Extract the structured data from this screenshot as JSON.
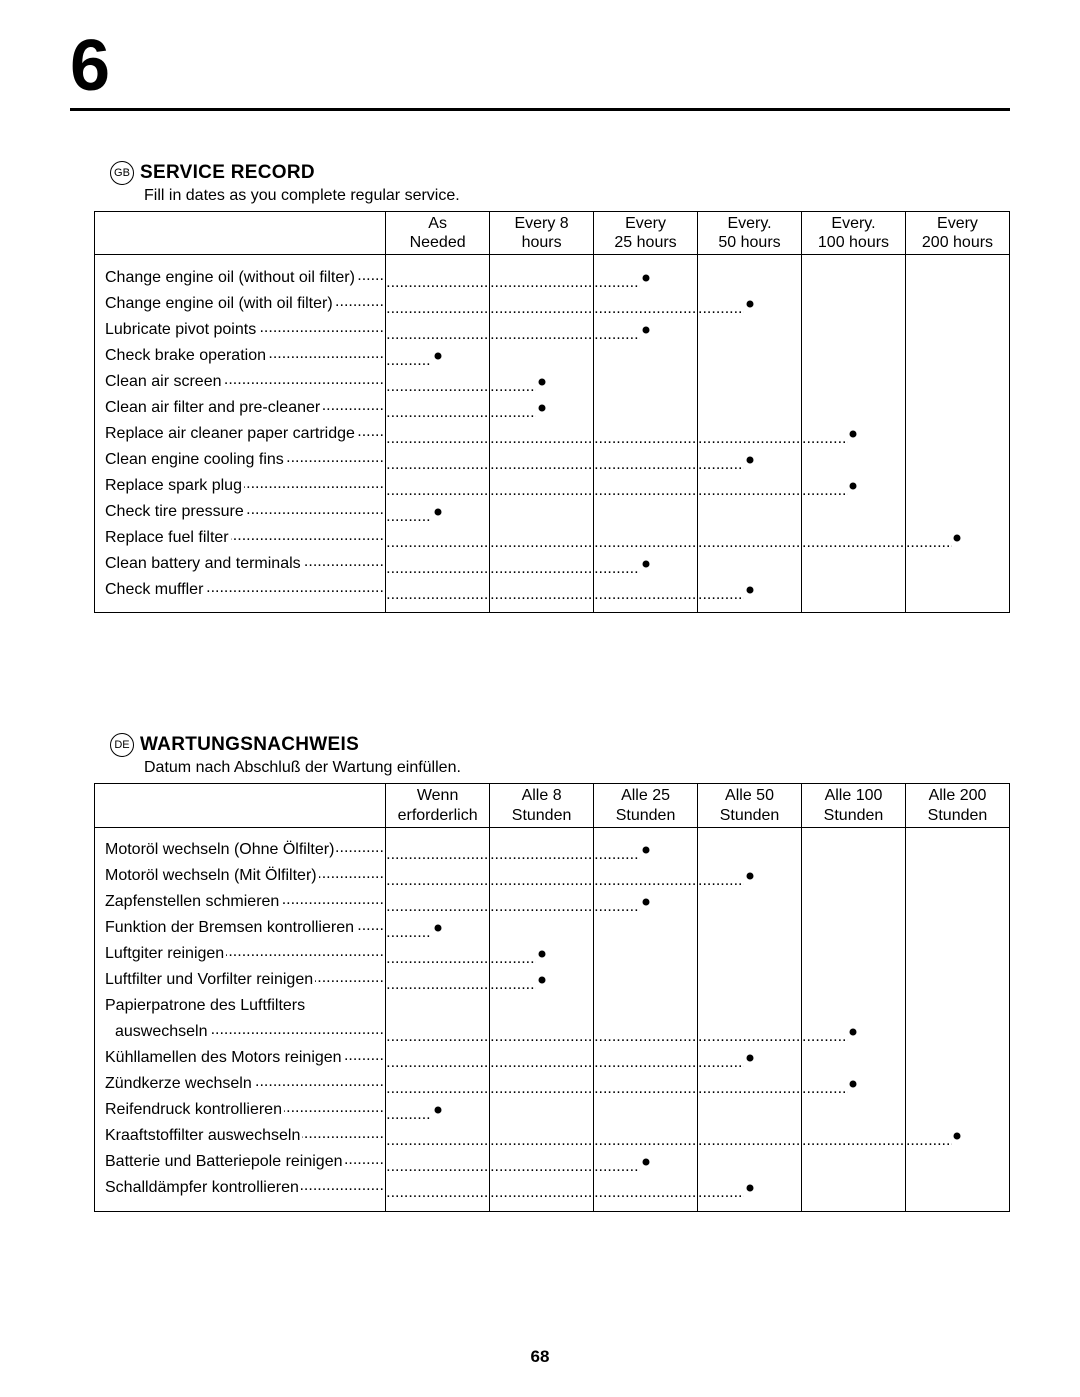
{
  "chapter_number": "6",
  "page_number": "68",
  "sections": [
    {
      "lang_code": "GB",
      "title": "SERVICE RECORD",
      "subtitle": "Fill in dates as you complete regular service.",
      "columns": [
        {
          "line1": "As",
          "line2": "Needed"
        },
        {
          "line1": "Every 8",
          "line2": "hours"
        },
        {
          "line1": "Every",
          "line2": "25 hours"
        },
        {
          "line1": "Every.",
          "line2": "50 hours"
        },
        {
          "line1": "Every.",
          "line2": "100 hours"
        },
        {
          "line1": "Every",
          "line2": "200 hours"
        }
      ],
      "rows": [
        {
          "label": "Change engine oil (without oil filter)",
          "dots_through": 3,
          "bullet_col": 3
        },
        {
          "label": "Change engine oil (with oil filter)",
          "dots_through": 4,
          "bullet_col": 4
        },
        {
          "label": "Lubricate pivot points",
          "dots_through": 3,
          "bullet_col": 3
        },
        {
          "label": "Check brake operation",
          "dots_through": 1,
          "bullet_col": 1
        },
        {
          "label": "Clean air screen",
          "dots_through": 2,
          "bullet_col": 2
        },
        {
          "label": "Clean air filter and pre-cleaner",
          "dots_through": 2,
          "bullet_col": 2
        },
        {
          "label": "Replace air cleaner paper cartridge",
          "dots_through": 5,
          "bullet_col": 5
        },
        {
          "label": "Clean engine cooling fins",
          "dots_through": 4,
          "bullet_col": 4
        },
        {
          "label": "Replace spark plug",
          "dots_through": 5,
          "bullet_col": 5
        },
        {
          "label": "Check tire pressure",
          "dots_through": 1,
          "bullet_col": 1
        },
        {
          "label": "Replace fuel filter",
          "dots_through": 6,
          "bullet_col": 6
        },
        {
          "label": "Clean battery and terminals",
          "dots_through": 3,
          "bullet_col": 3
        },
        {
          "label": "Check muffler",
          "dots_through": 4,
          "bullet_col": 4
        }
      ]
    },
    {
      "lang_code": "DE",
      "title": "WARTUNGSNACHWEIS",
      "subtitle": "Datum nach Abschluß der Wartung einfüllen.",
      "columns": [
        {
          "line1": "Wenn",
          "line2": "erforderlich"
        },
        {
          "line1": "Alle 8",
          "line2": "Stunden"
        },
        {
          "line1": "Alle 25",
          "line2": "Stunden"
        },
        {
          "line1": "Alle 50",
          "line2": "Stunden"
        },
        {
          "line1": "Alle 100",
          "line2": "Stunden"
        },
        {
          "line1": "Alle 200",
          "line2": "Stunden"
        }
      ],
      "rows": [
        {
          "label": "Motoröl wechseln (Ohne Ölfilter)",
          "dots_through": 3,
          "bullet_col": 3
        },
        {
          "label": "Motoröl wechseln (Mit Ölfilter)",
          "dots_through": 4,
          "bullet_col": 4
        },
        {
          "label": "Zapfenstellen schmieren",
          "dots_through": 3,
          "bullet_col": 3
        },
        {
          "label": "Funktion der Bremsen kontrollieren",
          "dots_through": 1,
          "bullet_col": 1
        },
        {
          "label": "Luftgiter reinigen",
          "dots_through": 2,
          "bullet_col": 2
        },
        {
          "label": "Luftfilter und Vorfilter reinigen",
          "dots_through": 2,
          "bullet_col": 2
        },
        {
          "label": "Papierpatrone des Luftfilters",
          "dots_through": 0,
          "bullet_col": 0
        },
        {
          "label": "auswechseln",
          "dots_through": 5,
          "bullet_col": 5,
          "indent": true
        },
        {
          "label": "Kühllamellen des Motors reinigen",
          "dots_through": 4,
          "bullet_col": 4
        },
        {
          "label": "Zündkerze wechseln",
          "dots_through": 5,
          "bullet_col": 5
        },
        {
          "label": "Reifendruck kontrollieren",
          "dots_through": 1,
          "bullet_col": 1
        },
        {
          "label": "Kraaftstoffilter auswechseln",
          "dots_through": 6,
          "bullet_col": 6
        },
        {
          "label": "Batterie und Batteriepole reinigen",
          "dots_through": 3,
          "bullet_col": 3
        },
        {
          "label": "Schalldämpfer kontrollieren",
          "dots_through": 4,
          "bullet_col": 4
        }
      ]
    }
  ]
}
